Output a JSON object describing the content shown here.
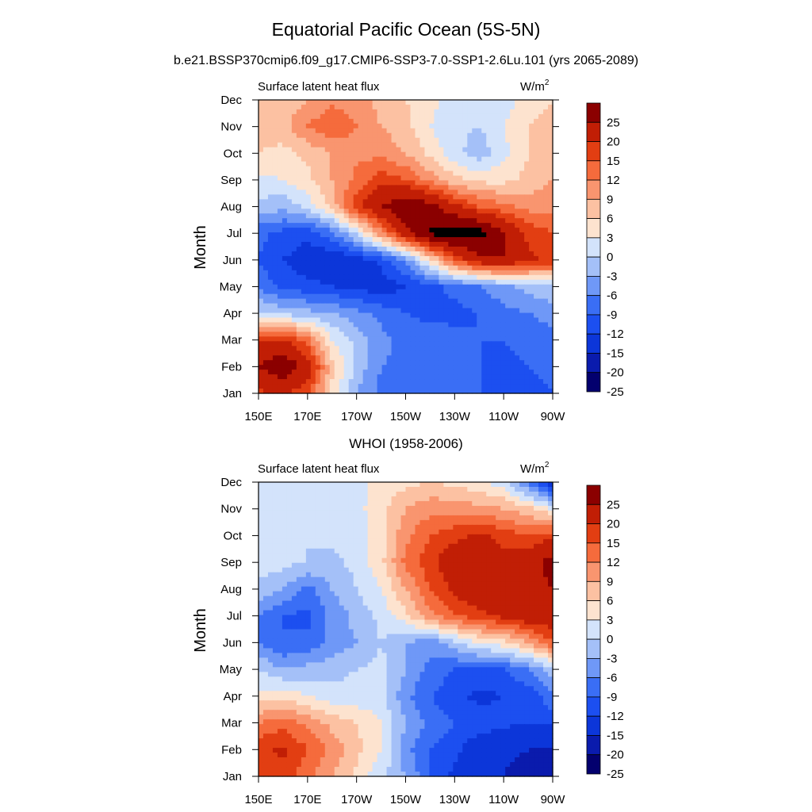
{
  "title": "Equatorial Pacific Ocean (5S-5N)",
  "subtitle": "b.e21.BSSP370cmip6.f09_g17.CMIP6-SSP3-7.0-SSP1-2.6Lu.101 (yrs 2065-2089)",
  "colorbar": {
    "labels": [
      "25",
      "20",
      "15",
      "12",
      "9",
      "6",
      "3",
      "0",
      "-3",
      "-6",
      "-9",
      "-12",
      "-15",
      "-20",
      "-25"
    ],
    "levels": [
      -25,
      -20,
      -15,
      -12,
      -9,
      -6,
      -3,
      0,
      3,
      6,
      9,
      12,
      15,
      20,
      25
    ],
    "colors": [
      "#03006e",
      "#0a1bad",
      "#0c36d9",
      "#1c4ff0",
      "#3a6ef5",
      "#6f98f7",
      "#a4c0f8",
      "#d3e3fb",
      "#fde3cf",
      "#fcc1a2",
      "#f9956f",
      "#f56b3c",
      "#e23e12",
      "#c11e05",
      "#8b0000"
    ]
  },
  "chart_data": [
    {
      "type": "heatmap",
      "panel_title": "",
      "left_label": "Surface latent heat flux",
      "units_base": "W/m",
      "units_exp": "2",
      "ylabel": "Month",
      "x_ticks": [
        "150E",
        "170E",
        "170W",
        "150W",
        "130W",
        "110W",
        "90W"
      ],
      "x_values": [
        150,
        170,
        190,
        210,
        230,
        250,
        270
      ],
      "y_ticks": [
        "Jan",
        "Feb",
        "Mar",
        "Apr",
        "May",
        "Jun",
        "Jul",
        "Aug",
        "Sep",
        "Oct",
        "Nov",
        "Dec"
      ],
      "lon_range": [
        150,
        270
      ],
      "grid": [
        [
          14,
          16,
          12,
          2,
          -6,
          -10,
          -11,
          -12,
          -12,
          -12,
          -14,
          -13,
          -12
        ],
        [
          20,
          24,
          18,
          4,
          -4,
          -9,
          -10,
          -11,
          -11,
          -12,
          -13,
          -12,
          -11
        ],
        [
          14,
          16,
          10,
          0,
          -4,
          -8,
          -10,
          -10,
          -11,
          -12,
          -12,
          -11,
          -10
        ],
        [
          -2,
          -4,
          -5,
          -6,
          -8,
          -10,
          -12,
          -13,
          -13,
          -12,
          -10,
          -9,
          -8
        ],
        [
          -10,
          -13,
          -14,
          -15,
          -16,
          -17,
          -15,
          -13,
          -11,
          -9,
          -7,
          -5,
          -3
        ],
        [
          -12,
          -15,
          -17,
          -18,
          -17,
          -14,
          -8,
          2,
          12,
          18,
          20,
          16,
          14
        ],
        [
          -11,
          -13,
          -14,
          -10,
          -2,
          8,
          18,
          26,
          28,
          27,
          20,
          14,
          12
        ],
        [
          -4,
          -5,
          -2,
          4,
          14,
          20,
          24,
          22,
          16,
          12,
          10,
          8,
          8
        ],
        [
          -1,
          0,
          2,
          6,
          10,
          14,
          12,
          8,
          4,
          2,
          2,
          4,
          6
        ],
        [
          3,
          2,
          4,
          6,
          8,
          8,
          6,
          2,
          -2,
          -5,
          -1,
          3,
          5
        ],
        [
          4,
          5,
          9,
          12,
          9,
          6,
          4,
          0,
          -2,
          -3,
          0,
          3,
          4
        ],
        [
          3,
          4,
          6,
          8,
          7,
          5,
          3,
          1,
          -2,
          -3,
          -2,
          2,
          3
        ]
      ]
    },
    {
      "type": "heatmap",
      "panel_title": "WHOI (1958-2006)",
      "left_label": "Surface latent heat flux",
      "units_base": "W/m",
      "units_exp": "2",
      "ylabel": "Month",
      "x_ticks": [
        "150E",
        "170E",
        "170W",
        "150W",
        "130W",
        "110W",
        "90W"
      ],
      "x_values": [
        150,
        170,
        190,
        210,
        230,
        250,
        270
      ],
      "y_ticks": [
        "Jan",
        "Feb",
        "Mar",
        "Apr",
        "May",
        "Jun",
        "Jul",
        "Aug",
        "Sep",
        "Oct",
        "Nov",
        "Dec"
      ],
      "lon_range": [
        150,
        270
      ],
      "grid": [
        [
          12,
          14,
          10,
          6,
          2,
          -2,
          -6,
          -12,
          -16,
          -18,
          -20,
          -22,
          -24
        ],
        [
          14,
          16,
          12,
          8,
          4,
          0,
          -8,
          -12,
          -14,
          -18,
          -19,
          -20,
          -21
        ],
        [
          9,
          11,
          8,
          5,
          3,
          0,
          -6,
          -10,
          -12,
          -13,
          -14,
          -15,
          -14
        ],
        [
          1,
          2,
          0,
          -2,
          -2,
          -2,
          -8,
          -12,
          -14,
          -16,
          -15,
          -14,
          -10
        ],
        [
          -3,
          -6,
          -5,
          -4,
          -3,
          -2,
          -6,
          -10,
          -12,
          -12,
          -12,
          -9,
          -4
        ],
        [
          -9,
          -12,
          -11,
          -8,
          -6,
          -3,
          -6,
          -8,
          -4,
          0,
          2,
          6,
          12
        ],
        [
          -9,
          -12,
          -13,
          -8,
          -5,
          -2,
          2,
          8,
          12,
          14,
          16,
          18,
          18
        ],
        [
          -4,
          -6,
          -10,
          -6,
          -3,
          0,
          6,
          12,
          16,
          18,
          16,
          18,
          20
        ],
        [
          -1,
          -2,
          -3,
          -4,
          -2,
          2,
          10,
          14,
          18,
          18,
          16,
          18,
          22
        ],
        [
          -2,
          -3,
          -3,
          -2,
          -2,
          2,
          8,
          12,
          14,
          16,
          14,
          12,
          14
        ],
        [
          -2,
          -3,
          -3,
          -2,
          -1,
          2,
          6,
          8,
          8,
          7,
          6,
          4,
          0
        ],
        [
          -2,
          -3,
          -2,
          -1,
          -1,
          1,
          2,
          3,
          2,
          1,
          -2,
          -10,
          -18
        ]
      ]
    }
  ]
}
